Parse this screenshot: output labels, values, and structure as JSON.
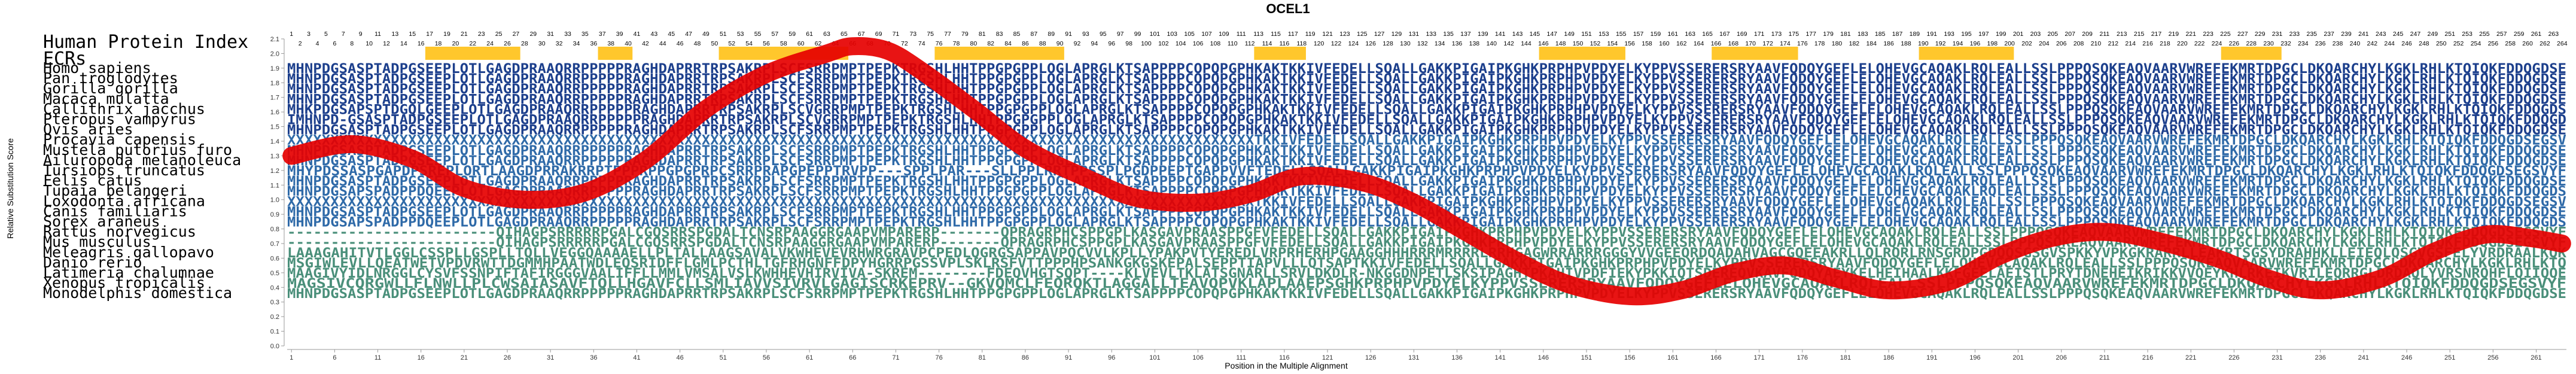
{
  "chart_data": {
    "type": "line",
    "title": "OCEL1",
    "xlabel": "Position in the Multiple Alignment",
    "ylabel": "Relative Substitution Score",
    "ylim": [
      0,
      2.1
    ],
    "yticks": [
      "0.0",
      "0.1",
      "0.2",
      "0.3",
      "0.4",
      "0.5",
      "0.6",
      "0.7",
      "0.8",
      "0.9",
      "1.0",
      "1.1",
      "1.2",
      "1.3",
      "1.4",
      "1.5",
      "1.6",
      "1.7",
      "1.8",
      "1.9",
      "2.0",
      "2.1"
    ],
    "xlim": [
      1,
      264
    ],
    "xticks": [
      1,
      6,
      11,
      16,
      21,
      26,
      31,
      36,
      41,
      46,
      51,
      56,
      61,
      66,
      71,
      76,
      81,
      86,
      91,
      96,
      101,
      106,
      111,
      116,
      121,
      126,
      131,
      136,
      141,
      146,
      151,
      156,
      161,
      166,
      171,
      176,
      181,
      186,
      191,
      196,
      201,
      206,
      211,
      216,
      221,
      226,
      231,
      236,
      241,
      246,
      251,
      256,
      261
    ],
    "hpi_row_label": "Human Protein Index",
    "ecr_row_label": "ECRs",
    "ecr_regions": [
      [
        17,
        27
      ],
      [
        37,
        40
      ],
      [
        51,
        65
      ],
      [
        76,
        90
      ],
      [
        113,
        118
      ],
      [
        146,
        155
      ],
      [
        166,
        175
      ],
      [
        190,
        200
      ],
      [
        225,
        231
      ]
    ],
    "curve": {
      "x": [
        1,
        8,
        15,
        21,
        28,
        35,
        42,
        49,
        56,
        63,
        66,
        70,
        74,
        80,
        86,
        93,
        99,
        106,
        112,
        118,
        125,
        131,
        137,
        143,
        149,
        156,
        162,
        168,
        174,
        180,
        186,
        193,
        199,
        205,
        211,
        217,
        224,
        230,
        236,
        243,
        249,
        255,
        260,
        264
      ],
      "y": [
        1.3,
        1.38,
        1.28,
        1.08,
        1.0,
        1.05,
        1.27,
        1.62,
        1.86,
        2.0,
        2.05,
        2.02,
        1.88,
        1.62,
        1.35,
        1.15,
        1.01,
        0.98,
        1.04,
        1.16,
        1.12,
        0.98,
        0.78,
        0.58,
        0.42,
        0.34,
        0.38,
        0.5,
        0.55,
        0.46,
        0.38,
        0.44,
        0.62,
        0.74,
        0.78,
        0.72,
        0.6,
        0.46,
        0.38,
        0.46,
        0.64,
        0.76,
        0.74,
        0.7
      ]
    }
  },
  "species": [
    {
      "name": "Homo sapiens",
      "seq": "MHNPDGSASPTADPGSEEPLOTLGAGDPRAAQRRPPPPPRAGHDAPRRTRPSAKRPLSCFSRRPMPTPEPKTRGSHLHHTPPGPGPPLOGLAPRGLKTSAPPPPCOPQPGPHKAKTKKIVFEDELLSQALLGAKKPIGAIPKGHKPRPHPVPDYELKYPPVSSERERSRYAAVFQDQYGEFLELOHEVGCAQAKLRQLEALLSSLPPPQSQKEAQVAARVWREFEKMRTDPGCLDKQARCHYLKGKLRHLKTQIQKFDDQGDSEGSVYF"
    },
    {
      "name": "Pan troglodytes",
      "seq": "MHNPDGSASPTADPGSEEPLOTLGAGDPRAAQRRPPPPPRAGHDAPRRTRPSAKRPLSCFSRRPMPTPEPKTRGSHLHHTPPGPGPPLOGLAPRGLKTSAPPPPCOPQPGPHKAKTKKIVFEDELLSQALLGAKKPIGAIPKGHKPRPHPVPDYELKYPPVSSERERSRYAAVFQDQYGEFLELOHEVGCAQAKLRQLEALLSSLPPPQSQKEAQVAARVWREFEKMRTDPGCLDKQARCHYLKGKLRHLKTQIQKFDDQGDSEGSVYF"
    },
    {
      "name": "Gorilla gorilla",
      "seq": "MHNPDGSASPTADPGSEEPLOTLGAGDPRAAQRRPPPPPRAGHDAPRRTRPSAKRPLSCFSRRPMPTPEPKTRGSHLHHTPPGPGPPLOGLAPRGLKTSAPPPPCOPQPGPHKAKTKKIVFEDELLSQALLGAKKPIGAIPKGHKPRPHPVPDYELKYPPVSSERERSRYAAVFQDQYGEFLELOHEVGCAQAKLRQLEALLSSLPPPQSQKEAQVAARVWREFEKMRTDPGCLDKQARCHYLKGKLRHLKTQIQKFDDQGDSEGSVYF"
    },
    {
      "name": "Macaca mulatta",
      "seq": "MHNPDGSASPTADPGSEEPLOTLGAGDPRAAQRRPPPPPRAGHDAPRRTRPSAKRPLSCFSRRPMPTPEPKTRGSHLHHTPPGPGPPLOGLAPRGLKTSAPPPPCOPQPGPHKAKTKKIVFEDELLSQALLGAKKPIGAIPKGHKPRPHPVPDYELKYPPVSSERERSRYAAVFQDQYGEFLELOHEVGCAQAKLRQLEALLSSLPPPQSQKEAQVAARVWREFEKMRTDPGCLDKQARCHYLKGKLRHLKTQIQKFDDQGDSEGSVYF"
    },
    {
      "name": "Callithrix jacchus",
      "seq": "MHKPDGSAPSPTDGQLGEEPLOTLGAGDPRAAQRRPPPPPRAGHDAPRRTRPSAKRPLSCVGRRPMPTPEPKTRGSHLHHTPPGPGPPLOGLAPRGLKTSAPPPPCOPQPGPHKAKTKKIVFEDELLSQALLGAKKPIGAIPKGHKPRPHPVPDYELKYPPVSSERERSRYAAVFQDQYGEFLELOHEVGCAQAKLRQLEALLSSLPPPQSQKEAQVAARVWREFEKMRTDPGCLDKQARCHYLKGKLRHLKTQIQKFDDQGDSEGSVYF"
    },
    {
      "name": "Pteropus vampyrus",
      "seq": "IMHNPD-GSASPTADPGSEEPLOTLGAGDPRAAQRRPPPPPRAGHDAPRRTRPSAKRPLSCVGRRPMPTPEPKTRGSHLHHTPPGPGPPLOGLAPRGLKTSAPPPPCOPQPGPHKAKTKKIVFEDELLSQALLGAKKPIGAIPKGHKPRPHPVPDYELKYPPVSSERERSRYAAVFQDQYGEFLELOHEVGCAQAKLRQLEALLSSLPPPQSQKEAQVAARVWREFEKMRTDPGCLDKQARCHYLKGKLRHLKTQIQKFDDQGDSEGSVYF"
    },
    {
      "name": "Ovis aries",
      "seq": "MHNPDGSASPTADPGSEEPLOTLGAGDPRAAQRRPPPPPRAGHDAPRRTRPSAKRPLSCFSRRPMPTPEPKTRGSHLHHTPPGPGPPLOGLAPRGLKTSAPPPPCOPQPGPHKAKTKKIVFEDELLSQALLGAKKPIGAIPKGHKPRPHPVPDYELKYPPVSSERERSRYAAVFQDQYGEFLELOHEVGCAQAKLRQLEALLSSLPPPQSQKEAQVAARVWREFEKMRTDPGCLDKQARCHYLKGKLRHLKTQIQKFDDQGDSEGSVYF"
    },
    {
      "name": "Procavia capensis",
      "seq": "XXXXXXXXXXXXXXXXXXXXXXXXXXXXXXXXXXXXXXXXXXXXXXXXXXXXXXXXXXXXXXXXXXXXXXXXXXXXXXXXXXXXXXXXXXXXXXXXXXXXXXXXXXXXXXXXTKKIVFEDELLSQALLGAKKPIGAIPKGHKPRPHPVPDYELKYPPVSSERERSRYAAVFQDQYGEFLELOHEVGCAQAKLRQLEALLSSLPPPQSQKEAQVAARVWREFEKMRTDPGCLDKQARCHYLKGKLRHLKTQIQKFDDQGDSEGSVYF"
    },
    {
      "name": "Mustela putorius furo",
      "seq": "MHNPDGSASPTADPGSEEPLOTLGAGDPRAAQRRPPPPPRAGHDAPRRTRPSAKRPLSCFSRRPMPTPEPKTRGSHLHHTPPGPGPPLOGLAPRGLKTSAPPPPCOPQPGPHKAKTKKIVFEDELLSQALLGAKKPIGAIPKGHKPRPHPVPDYELKYPPVSSERERSRYAAVFQDQYGEFLELOHEVGCAQAKLRQLEALLSSLPPPQSQKEAQVAARVWREFEKMRTDPGCLDKQARCHYLKGKLRHLKTQIQKFDDQGDSEGSVYF"
    },
    {
      "name": "Ailuropoda melanoleuca",
      "seq": "MHNPDGSASPTADPGSEEPLOTLGAGDPRAAQRRPPPPPRAGHDAPRRTRPSAKRPLSCFSRRPMPTPEPKTRGSHLHHTPPGPGPPLOGLAPRGLKTSAPPPPCOPQPGPHKAKTKKIVFEDELLSQALLGAKKPIGAIPKGHKPRPHPVPDYELKYPPVSSERERSRYAAVFQDQYGEFLELOHEVGCAQAKLRQLEALLSSLPPPQSQKEAQVAARVWREFEKMRTDPGCLDKQARCHYLKGKLRHLKTQIQKFDDQGDSEGSVYF"
    },
    {
      "name": "Tursiops truncatus",
      "seq": "MHYPDSSASPGAPDPSREPLORTLAAGDPRRAKRRPTPPPRPPGPGPRPCSRRPRAPGPEPPTRVPP---SPPLPAR---SLLPPLRRTPPSSPLPGDPPEPTGAPPVVFTEDELLSQALLGAKKPIGAIPKGHKPRPHPVPDYELKYPPVSSERERSRYAAVFQDQYGEFLELOHEVGCAQAKLRQLEALLSSLPPPQSQKEAQVAARVWREFEKMRTDPGCLDKQARCHYLKGKLRHLKTQIQKFDDQGDSEGSVYF"
    },
    {
      "name": "Felis catus",
      "seq": "MHNPDGSASPTADPGSEEPLOTLGAGDPRAAQRRPPPPPRAGHDAPRRTRPSAKRPLSCFSRRPMPTPEPKTRGSHLHHTPPGPGPPLOGLAPRGLKTSAPPPPCOPQPGPHKAKTKKIVFEDELLSQALLGAKKPIGAIPKGHKPRPHPVPDYELKYPPVSSERERSRYAAVFQDQYGEFLELOHEVGCAQAKLRQLEALLSSLPPPQSQKEAQVAARVWREFEKMRTDPGCLDKQARCHYLKGKLRHLKTQIQKFDDQGDSEGSVYF"
    },
    {
      "name": "Tupaia belangeri",
      "seq": "MHNPDGSAPSPADPPDQEEPLOTLGAGDPRAAQRRPPPPPRAGHDAPRRTRPSAKRPLSCFSRRPMPTPEPKTRGSHLHHTPPGPGPPLOGLAPRGLKTSAPPPPCOPQPGPHKAKTKKIVFEDELLSQALLGAKKPIGAIPKGHKPRPHPVPDYELKYPPVSSERERSRYAAVFQDQYGEFLELOHEVGCAQAKLRQLEALLSSLPPPQSQKEAQVAARVWREFEKMRTDPGCLDKQARCHYLKGKLRHLKTQIQKFDDQGDSEGSVYF"
    },
    {
      "name": "Loxodonta africana",
      "seq": "XXXXXXXXXXXXXXXXXXXXXXXXXXXXXXXXXXXXXXXXXXXXXXXXXXXXXXXXXXXXXXXXXXXXXXXXXXXXXXXXXXXXXXXXXXXXXXXXXXXXXXXXXXXXXXXXTKKIVFEDELLSQALLGAKKPIGAIPKGHKPRPHPVPDYELKYPPVSSERERSRYAAVFQDQYGEFLELOHEVGCAQAKLRQLEALLSSLPPPQSQKEAQVAARVWREFEKMRTDPGCLDKQARCHYLKGKLRHLKTQIQKFDDQGDSEGSVYF"
    },
    {
      "name": "Canis familiaris",
      "seq": "MHNPDGSASPTADPGSEEPLOTLGAGDPRAAQRRPPPPPRAGHDAPRRTRPSAKRPLSCFSRRPMPTPEPKTRGSHLHHTPPGPGPPLOGLAPRGLKTSAPPPPCOPQPGPHKAKTKKIVFEDELLSQALLGAKKPIGAIPKGHKPRPHPVPDYELKYPPVSSERERSRYAAVFQDQYGEFLELOHEVGCAQAKLRQLEALLSSLPPPQSQKEAQVAARVWREFEKMRTDPGCLDKQARCHYLKGKLRHLKTQIQKFDDQGDSEGSVYF"
    },
    {
      "name": "Sorex araneus",
      "seq": "MHNPDGSAPSPADPPDQEEPLOTLGAGDPRAAQRRPPPPPRAGHDAPRRTRPSAKRPLSCFSRRPMPTPEPKTRGSHLHHTPPGPGPPLOGLAPRGLKTSAPPPPCOPQPGPHKAKTKKIVFEDELLSQALLGAKKPIGAIPKGHKPRPHPVPDYELKYPPVSSERERSRYAAVFQDQYGEFLELOHEVGCAQAKLRQLEALLSSLPPPQSQKEAQVAARVWREFEKMRTDPGCLDKQARCHYLKGKLRHLKTQIQKFDDQGDSEGSVYF"
    },
    {
      "name": "Rattus norvegicus",
      "seq": "------------------------QIHAGPSRRRRRPGALCGQSRRSPGDALTCNSRPAAGGRGAAPVMPARERP-------QPRAGRPHCSPPGPLKASGAVPRAASPPGFVFEDELLSQALLGAKKPIGAIPKGHKPRPHPVPDYELKYPPVSSERERSRYAAVFQDQYGEFLELOHEVGCAQAKLRQLEALLSSLPPPQSQKEAQVAARVWREFEKMRTDPGCLDKQARCHYLKGKLRHLKTQIQKFDDQGDSEGSVYF"
    },
    {
      "name": "Mus musculus",
      "seq": "------------------------QIHAGPSRRRRRPGALCGQSRRSPGDALTCNSRPAAGGRGAAPVMPARERP-------QPRAGRPHCSPPGPLKASGAVPRAASPPGFVFEDELLSQALLGAKKPIGAIPKGHKPRPHPVPDYELKYPPVSSERERSRYAAVFQDQYGEFLELOHEVGCAQAKLRQLEALLSSLPPPQSQKEAQVAARVWREFEKMRTDPGCLDKQARCHYLKGKLRHLKTQIQKFDDQGDSEGSVYF"
    },
    {
      "name": "Meleagris gallopavo",
      "seq": "LAAAGAHITVTLGGLCSSPLLGSPLLTQLLVEGGQAAAAELLPLTALLAAGSAVALVKWHEVEVRHWRGRAVPCPEDLQGRGSAPPAVPQCVVLKPLLYPAKPVTYEREDLVRPRHERHPGAAGGHHHRRRMRRRRLRRHGAGWRRARRRGGGYVVGEEQRDQADAHVAGCGQEEAKRLLQLRQRLRNSGRDPGDQQSGSGVSPKKYVPKGKRARRLLEAKRTSGSYDRAHHKLLEIEQLQSGVGSFELYVRDRAALKQK"
    },
    {
      "name": "Danio rerio",
      "seq": "MSGIWLEVLLQEATWETVPDVRWTTDGMMHPAATWDLEQSRIDFFLGMLPCTHLTGFRHGNFFDPYHGRRPGSSVPLSKLRSFVTTPPPHPSANKGKGSKEPALSEPPTIAPVLLLQTSAPTKKIVFEDELLSQALLGAKKPIGAIPKGHKPRPHPVPDYELKYPPVSSERERSRYAAVFQDQYGEFLELOHEVGCAQAKLRQLEALLSSLPPPQSQKEAQVAARVWREFEKMRTDPGCLDKQARCHYLKGKLRHLKTQ"
    },
    {
      "name": "Latimeria chalumnae",
      "seq": "MAAGIVYIDLNRGGLCYSVFSSNPIFTAFIRGGGVAALIFFLLMMLVMSALVSLKWHHEVHIRVIVA-SKREM--------FDEQVHGTSQPT----KLVEVLTKLATSGNARLLSRVLDKDLR-NKGGDNPETLSKSIPAGHTPKAHIVPDFIEKYPKKIQTSDEREQVKAVFQDQYAEYKELHEIHAALKKFGEELAEISTLPRYTDNEHEIKRIKKVVQEYKHLRKEIKVRILEQRRGLDRDAQLYVRSNRQHFLQIIQQEDYNLIQKLHV"
    },
    {
      "name": "Xenopus tropicalis",
      "seq": "MAGSIVCQRGWLLFLNWLLPLCWSAIASAVFTQLLHGAVFCLLSMLIAVVSIVRVLGAGISCRKEPRV--GKVQMCLFEQRQKTLAGGALLTEAVQPVKLAPLAAEPSGHKPRPHPVPDYELKYPPVSSERERSRYAAVFQDQYGEFLELOHEVGCAQAKLRQLEALLSSLPPPQSQKEAQVAARVWREFEKMRTDPGCLDKQARCHYLKGKLRHLKTQIQKFDDQGDSEGSVYF"
    },
    {
      "name": "Monodelphis domestica",
      "seq": "MHNPDGSASPTADPGSEEPLOTLGAGDPRAAQRRPPPPPRAGHDAPRRTRPSAKRPLSCFSRRPMPTPEPKTRGSHLHHTPPGPGPPLOGLAPRGLKTSAPPPPCOPQPGPHKAKTKKIVFEDELLSQALLGAKKPIGAIPKGHKPRPHPVPDYELKYPPVSSERERSRYAAVFQDQYGEFLELOHEVGCAQAKLRQLEALLSSLPPPQSQKEAQVAARVWREFEKMRTDPGCLDKQARCHYLKGKLRHLKTQIQKFDDQGDSEGSVYF"
    }
  ],
  "colors": {
    "curve": "#e60000",
    "ecr": "#ffc72c",
    "seq_dark": "#1c3f8c",
    "seq_mid": "#2f6aa8",
    "seq_green": "#4a8f7a"
  }
}
